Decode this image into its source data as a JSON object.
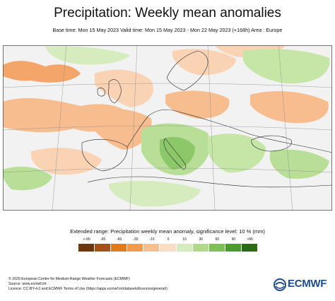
{
  "header": {
    "title": "Precipitation: Weekly mean anomalies",
    "subtitle": "Base time: Mon 15 May 2023 Valid time: Mon 15 May 2023 - Mon 22 May 2023 (+168h) Area : Europe"
  },
  "map": {
    "region": "Europe",
    "land_color": "#f4f4f4",
    "sea_color": "#fafafa",
    "dominant_patterns": [
      {
        "area": "North Atlantic west",
        "category": "-10 to -60",
        "color": "#f4a66a"
      },
      {
        "area": "France / Bay of Biscay",
        "category": "-10 to -30",
        "color": "#f7bd8e"
      },
      {
        "area": "Central Europe",
        "category": "-10",
        "color": "#fad3b5"
      },
      {
        "area": "Alps / Italy",
        "category": "+10 to +60",
        "color": "#8cc86a"
      },
      {
        "area": "Balkans",
        "category": "+10 to +30",
        "color": "#b8de98"
      },
      {
        "area": "Russia west",
        "category": "+10",
        "color": "#c6e6a8"
      },
      {
        "area": "Scandinavia",
        "category": "-10",
        "color": "#fad3b5"
      }
    ]
  },
  "legend": {
    "title": "Extended range: Precipitation weekly mean anomaly, significance level: 10 % (mm)",
    "labels": [
      "<-90",
      "-90",
      "-60",
      "-30",
      "-10",
      "0",
      "10",
      "30",
      "60",
      "90",
      ">90"
    ],
    "colors": [
      "#6b3712",
      "#a2521a",
      "#e07a1e",
      "#f39a52",
      "#f7be8f",
      "#fbdcc4",
      "#d6ecbf",
      "#b1d98d",
      "#7fbf56",
      "#4d9a2e",
      "#2b6a17"
    ]
  },
  "footer": {
    "line1": "© 2020 European Centre for Medium-Range Weather Forecasts (ECMWF)",
    "line2": "Source: www.ecmwf.int",
    "line3": "Licence: CC-BY-4.0 and ECMWF Terms of Use (https://apps.ecmwf.int/datasets/licences/general/)"
  },
  "logo": {
    "text": "ECMWF",
    "color": "#1e4d8c"
  }
}
